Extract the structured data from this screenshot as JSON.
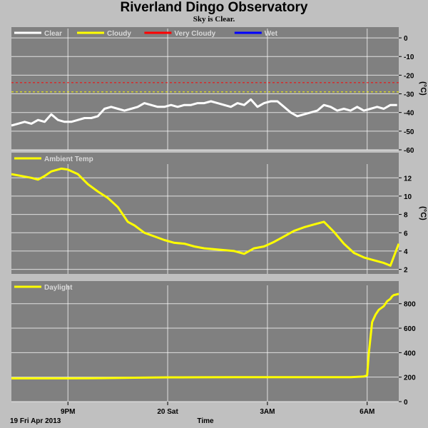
{
  "header": {
    "title": "Riverland Dingo Observatory",
    "subtitle": "Sky is Clear."
  },
  "colors": {
    "plot_bg": "#808080",
    "page_bg": "#c0c0c0",
    "clear": "#ffffff",
    "cloudy": "#ffff00",
    "very_cloudy": "#ff0000",
    "wet": "#0000ff",
    "grid": "#ffffff"
  },
  "x_axis": {
    "tick_labels": [
      "9PM",
      "20 Sat",
      "3AM",
      "6AM"
    ],
    "tick_hours": [
      21,
      24,
      27,
      30
    ],
    "range_hours": [
      19.3,
      30.95
    ],
    "date_label": "19 Fri Apr 2013",
    "label": "Time"
  },
  "chart_data": [
    {
      "type": "line",
      "title": "",
      "ylabel": "(°C)",
      "ylim": [
        -60,
        5
      ],
      "yticks": [
        0,
        -10,
        -20,
        -30,
        -40,
        -50,
        -60
      ],
      "grid": true,
      "legend_position": "top-left",
      "series": [
        {
          "name": "Clear",
          "color": "#ffffff",
          "x": [
            19.3,
            19.5,
            19.7,
            19.9,
            20.1,
            20.3,
            20.5,
            20.7,
            20.9,
            21.1,
            21.3,
            21.5,
            21.7,
            21.9,
            22.1,
            22.3,
            22.5,
            22.7,
            22.9,
            23.1,
            23.3,
            23.5,
            23.7,
            23.9,
            24.1,
            24.3,
            24.5,
            24.7,
            24.9,
            25.1,
            25.3,
            25.5,
            25.7,
            25.9,
            26.1,
            26.3,
            26.5,
            26.7,
            26.9,
            27.1,
            27.3,
            27.5,
            27.7,
            27.9,
            28.1,
            28.3,
            28.5,
            28.7,
            28.9,
            29.1,
            29.3,
            29.5,
            29.7,
            29.9,
            30.1,
            30.3,
            30.5,
            30.7,
            30.9
          ],
          "y": [
            -47,
            -46,
            -45,
            -46,
            -44,
            -45,
            -41,
            -44,
            -45,
            -45,
            -44,
            -43,
            -43,
            -42,
            -38,
            -37,
            -38,
            -39,
            -38,
            -37,
            -35,
            -36,
            -37,
            -37,
            -36,
            -37,
            -36,
            -36,
            -35,
            -35,
            -34,
            -35,
            -36,
            -37,
            -35,
            -36,
            -33,
            -37,
            -35,
            -34,
            -34,
            -37,
            -40,
            -42,
            -41,
            -40,
            -39,
            -36,
            -37,
            -39,
            -38,
            -39,
            -37,
            -39,
            -38,
            -37,
            -38,
            -36,
            -36
          ]
        },
        {
          "name": "Cloudy",
          "color": "#ffff00",
          "threshold": -29,
          "dashed": true
        },
        {
          "name": "Very Cloudy",
          "color": "#ff0000",
          "threshold": -24,
          "dashed": true
        },
        {
          "name": "Wet",
          "color": "#0000ff",
          "values": []
        }
      ]
    },
    {
      "type": "line",
      "title": "",
      "ylabel": "(°C)",
      "ylim": [
        1.5,
        13.5
      ],
      "yticks": [
        12,
        10,
        8,
        6,
        4,
        2
      ],
      "grid": true,
      "legend_position": "top-left",
      "series": [
        {
          "name": "Ambient Temp",
          "color": "#ffff00",
          "x": [
            19.3,
            19.6,
            19.9,
            20.1,
            20.3,
            20.5,
            20.8,
            21.0,
            21.3,
            21.6,
            21.9,
            22.2,
            22.5,
            22.8,
            23.0,
            23.3,
            23.6,
            23.9,
            24.2,
            24.5,
            24.8,
            25.1,
            25.4,
            25.7,
            26.0,
            26.3,
            26.6,
            26.9,
            27.2,
            27.5,
            27.8,
            28.1,
            28.4,
            28.7,
            29.0,
            29.3,
            29.6,
            29.9,
            30.2,
            30.5,
            30.7,
            30.95
          ],
          "y": [
            12.4,
            12.2,
            12.0,
            11.8,
            12.2,
            12.7,
            13.0,
            12.9,
            12.4,
            11.3,
            10.5,
            9.8,
            8.8,
            7.2,
            6.8,
            6.0,
            5.6,
            5.2,
            4.9,
            4.8,
            4.5,
            4.3,
            4.2,
            4.1,
            4.0,
            3.7,
            4.3,
            4.5,
            5.0,
            5.6,
            6.2,
            6.6,
            6.9,
            7.2,
            6.1,
            4.8,
            3.8,
            3.3,
            3.0,
            2.7,
            2.4,
            4.8
          ]
        }
      ]
    },
    {
      "type": "line",
      "title": "",
      "ylabel": "",
      "ylim": [
        0,
        950
      ],
      "yticks": [
        800,
        600,
        400,
        200,
        0
      ],
      "grid": true,
      "legend_position": "top-left",
      "series": [
        {
          "name": "Daylight",
          "color": "#ffff00",
          "x": [
            19.3,
            20.0,
            21.0,
            22.0,
            23.0,
            24.0,
            25.0,
            26.0,
            27.0,
            28.0,
            29.0,
            29.5,
            29.9,
            30.0,
            30.05,
            30.15,
            30.25,
            30.35,
            30.5,
            30.6,
            30.7,
            30.75,
            30.8,
            30.95
          ],
          "y": [
            190,
            190,
            190,
            192,
            195,
            198,
            199,
            200,
            200,
            200,
            200,
            200,
            205,
            215,
            400,
            650,
            710,
            750,
            780,
            820,
            840,
            860,
            870,
            880
          ]
        }
      ]
    }
  ]
}
